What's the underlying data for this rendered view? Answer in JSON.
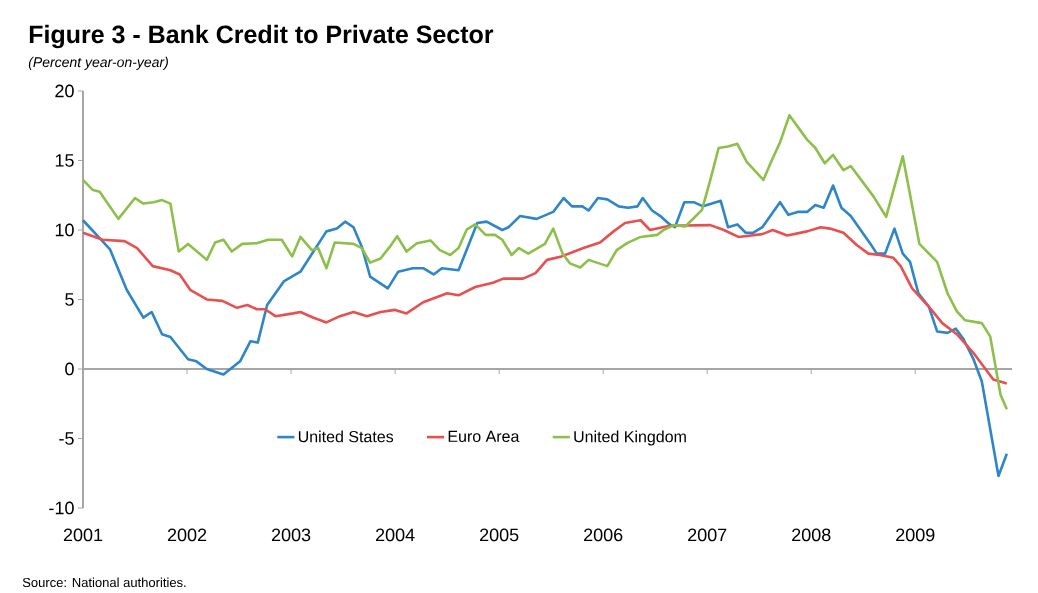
{
  "chart_data": {
    "type": "line",
    "title": "Figure 3 - Bank Credit to Private Sector",
    "subtitle": "(Percent year-on-year)",
    "annotations": [
      "Source: National authorities."
    ],
    "xlim": [
      2001,
      2009.93
    ],
    "xticks": [
      2001,
      2002,
      2003,
      2004,
      2005,
      2006,
      2007,
      2008,
      2009
    ],
    "ylim": [
      -10,
      20
    ],
    "yticks": [
      -10,
      -5,
      0,
      5,
      10,
      15,
      20
    ],
    "legend": "bottom",
    "series": [
      {
        "name": "United States",
        "color": "#2e86c8",
        "x": [
          2001.0,
          2001.26,
          2001.42,
          2001.58,
          2001.66,
          2001.76,
          2001.84,
          2002.01,
          2002.09,
          2002.19,
          2002.35,
          2002.51,
          2002.61,
          2002.68,
          2002.77,
          2002.93,
          2003.09,
          2003.34,
          2003.44,
          2003.52,
          2003.6,
          2003.68,
          2003.76,
          2003.93,
          2004.03,
          2004.17,
          2004.27,
          2004.37,
          2004.45,
          2004.61,
          2004.79,
          2004.88,
          2005.03,
          2005.09,
          2005.2,
          2005.36,
          2005.52,
          2005.62,
          2005.7,
          2005.8,
          2005.86,
          2005.95,
          2006.04,
          2006.15,
          2006.24,
          2006.33,
          2006.38,
          2006.47,
          2006.55,
          2006.64,
          2006.69,
          2006.78,
          2006.87,
          2006.96,
          2007.13,
          2007.2,
          2007.29,
          2007.37,
          2007.44,
          2007.53,
          2007.7,
          2007.78,
          2007.87,
          2007.96,
          2008.04,
          2008.12,
          2008.21,
          2008.29,
          2008.38,
          2008.57,
          2008.63,
          2008.71,
          2008.8,
          2008.88,
          2008.95,
          2009.03,
          2009.13,
          2009.21,
          2009.31,
          2009.39,
          2009.46,
          2009.56,
          2009.64,
          2009.8,
          2009.88
        ],
        "values": [
          10.7,
          8.6,
          5.7,
          3.7,
          4.1,
          2.5,
          2.3,
          0.7,
          0.55,
          0,
          -0.4,
          0.55,
          2.0,
          1.9,
          4.6,
          6.3,
          7.0,
          9.9,
          10.1,
          10.6,
          10.2,
          8.8,
          6.65,
          5.8,
          7.0,
          7.25,
          7.25,
          6.8,
          7.25,
          7.1,
          10.5,
          10.6,
          10.0,
          10.2,
          11.0,
          10.8,
          11.3,
          12.3,
          11.7,
          11.7,
          11.4,
          12.3,
          12.2,
          11.7,
          11.6,
          11.7,
          12.3,
          11.4,
          11.0,
          10.4,
          10.2,
          12.0,
          12.0,
          11.7,
          12.1,
          10.2,
          10.4,
          9.8,
          9.8,
          10.2,
          12.0,
          11.1,
          11.3,
          11.3,
          11.8,
          11.6,
          13.2,
          11.6,
          11.0,
          9.0,
          8.3,
          8.3,
          10.1,
          8.3,
          7.7,
          5.45,
          4.5,
          2.7,
          2.6,
          2.9,
          2.2,
          0.7,
          -0.9,
          -7.7,
          -6.1
        ]
      },
      {
        "name": "Euro Area",
        "color": "#e8504f",
        "x": [
          2001.0,
          2001.19,
          2001.4,
          2001.52,
          2001.67,
          2001.84,
          2001.93,
          2002.03,
          2002.19,
          2002.34,
          2002.48,
          2002.58,
          2002.67,
          2002.75,
          2002.85,
          2003.02,
          2003.09,
          2003.21,
          2003.34,
          2003.47,
          2003.6,
          2003.73,
          2003.86,
          2004.0,
          2004.11,
          2004.27,
          2004.5,
          2004.61,
          2004.77,
          2004.94,
          2005.04,
          2005.23,
          2005.35,
          2005.46,
          2005.6,
          2005.81,
          2005.97,
          2006.1,
          2006.21,
          2006.36,
          2006.45,
          2006.64,
          2007.03,
          2007.16,
          2007.3,
          2007.53,
          2007.63,
          2007.77,
          2007.96,
          2008.09,
          2008.18,
          2008.31,
          2008.44,
          2008.55,
          2008.66,
          2008.79,
          2008.86,
          2008.97,
          2009.14,
          2009.26,
          2009.4,
          2009.56,
          2009.75,
          2009.88
        ],
        "values": [
          9.8,
          9.3,
          9.2,
          8.7,
          7.4,
          7.1,
          6.8,
          5.7,
          5.0,
          4.9,
          4.4,
          4.6,
          4.3,
          4.3,
          3.8,
          4.0,
          4.1,
          3.7,
          3.35,
          3.8,
          4.1,
          3.8,
          4.1,
          4.25,
          4.0,
          4.8,
          5.45,
          5.3,
          5.9,
          6.2,
          6.5,
          6.5,
          6.9,
          7.85,
          8.1,
          8.7,
          9.1,
          9.9,
          10.5,
          10.7,
          10.0,
          10.3,
          10.35,
          10.0,
          9.5,
          9.7,
          10.0,
          9.6,
          9.9,
          10.2,
          10.1,
          9.8,
          8.9,
          8.3,
          8.2,
          8.0,
          7.4,
          5.8,
          4.4,
          3.3,
          2.5,
          1.15,
          -0.75,
          -1.05
        ]
      },
      {
        "name": "United Kingdom",
        "color": "#8dc04a",
        "x": [
          2001.0,
          2001.09,
          2001.16,
          2001.34,
          2001.5,
          2001.58,
          2001.68,
          2001.76,
          2001.84,
          2001.92,
          2002.01,
          2002.19,
          2002.27,
          2002.35,
          2002.43,
          2002.53,
          2002.67,
          2002.78,
          2002.91,
          2003.01,
          2003.09,
          2003.2,
          2003.26,
          2003.34,
          2003.42,
          2003.6,
          2003.68,
          2003.76,
          2003.86,
          2003.95,
          2004.02,
          2004.11,
          2004.21,
          2004.34,
          2004.43,
          2004.53,
          2004.61,
          2004.69,
          2004.77,
          2004.87,
          2004.96,
          2005.03,
          2005.12,
          2005.19,
          2005.28,
          2005.44,
          2005.52,
          2005.61,
          2005.68,
          2005.78,
          2005.86,
          2006.04,
          2006.13,
          2006.23,
          2006.36,
          2006.52,
          2006.58,
          2006.68,
          2006.79,
          2006.87,
          2006.95,
          2007.03,
          2007.11,
          2007.2,
          2007.29,
          2007.38,
          2007.54,
          2007.62,
          2007.7,
          2007.79,
          2007.96,
          2008.04,
          2008.13,
          2008.21,
          2008.31,
          2008.38,
          2008.6,
          2008.72,
          2008.88,
          2009.04,
          2009.21,
          2009.31,
          2009.4,
          2009.48,
          2009.64,
          2009.72,
          2009.82,
          2009.88
        ],
        "values": [
          13.6,
          12.9,
          12.75,
          10.8,
          12.3,
          11.9,
          12.0,
          12.15,
          11.9,
          8.45,
          9.0,
          7.85,
          9.1,
          9.3,
          8.45,
          9.0,
          9.05,
          9.3,
          9.3,
          8.1,
          9.5,
          8.55,
          8.7,
          7.25,
          9.1,
          9.0,
          8.7,
          7.65,
          7.95,
          8.8,
          9.55,
          8.45,
          9.05,
          9.25,
          8.55,
          8.2,
          8.7,
          10.05,
          10.4,
          9.65,
          9.65,
          9.3,
          8.2,
          8.7,
          8.3,
          9.0,
          10.1,
          8.3,
          7.6,
          7.3,
          7.85,
          7.4,
          8.55,
          9.05,
          9.5,
          9.65,
          10.0,
          10.35,
          10.25,
          10.85,
          11.45,
          13.6,
          15.9,
          16.0,
          16.2,
          14.9,
          13.6,
          15.0,
          16.3,
          18.25,
          16.5,
          15.9,
          14.8,
          15.4,
          14.3,
          14.6,
          12.4,
          10.95,
          15.3,
          9.0,
          7.7,
          5.45,
          4.15,
          3.5,
          3.3,
          2.35,
          -1.85,
          -2.9
        ]
      }
    ]
  }
}
